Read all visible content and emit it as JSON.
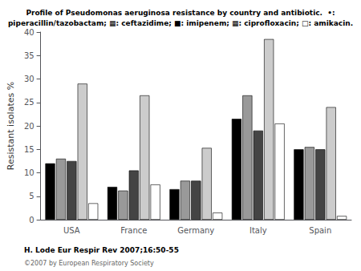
{
  "chart_data": {
    "type": "bar",
    "title": "Profile of Pseudomonas aeruginosa resistance by country and antibiotic.  •:\npiperacillin/tazobactam; ▦: ceftazidime; ■: imipenem; ▦: ciprofloxacin; □: amikacin.",
    "categories": [
      "USA",
      "France",
      "Germany",
      "Italy",
      "Spain"
    ],
    "series": [
      {
        "name": "piperacillin/tazobactam",
        "color": "#000000",
        "values": [
          12,
          7,
          6.5,
          21.5,
          15
        ]
      },
      {
        "name": "ceftazidime",
        "color": "#999999",
        "values": [
          13,
          6.2,
          8.3,
          26.5,
          15.5
        ]
      },
      {
        "name": "imipenem",
        "color": "#444444",
        "values": [
          12.5,
          10.5,
          8.3,
          19,
          15
        ]
      },
      {
        "name": "ciprofloxacin",
        "color": "#cccccc",
        "values": [
          29,
          26.5,
          15.3,
          38.5,
          24
        ]
      },
      {
        "name": "amikacin",
        "color": "#ffffff",
        "values": [
          3.5,
          7.5,
          1.5,
          20.5,
          0.8
        ]
      }
    ],
    "ylabel": "Resistant isolates %",
    "ylim": [
      0,
      40
    ],
    "yticks": [
      0,
      5,
      10,
      15,
      20,
      25,
      30,
      35,
      40
    ],
    "grid": false,
    "legend": false,
    "annotations": [
      "H. Lode Eur Respir Rev 2007;16:50-55",
      "©2007 by European Respiratory Society"
    ]
  }
}
